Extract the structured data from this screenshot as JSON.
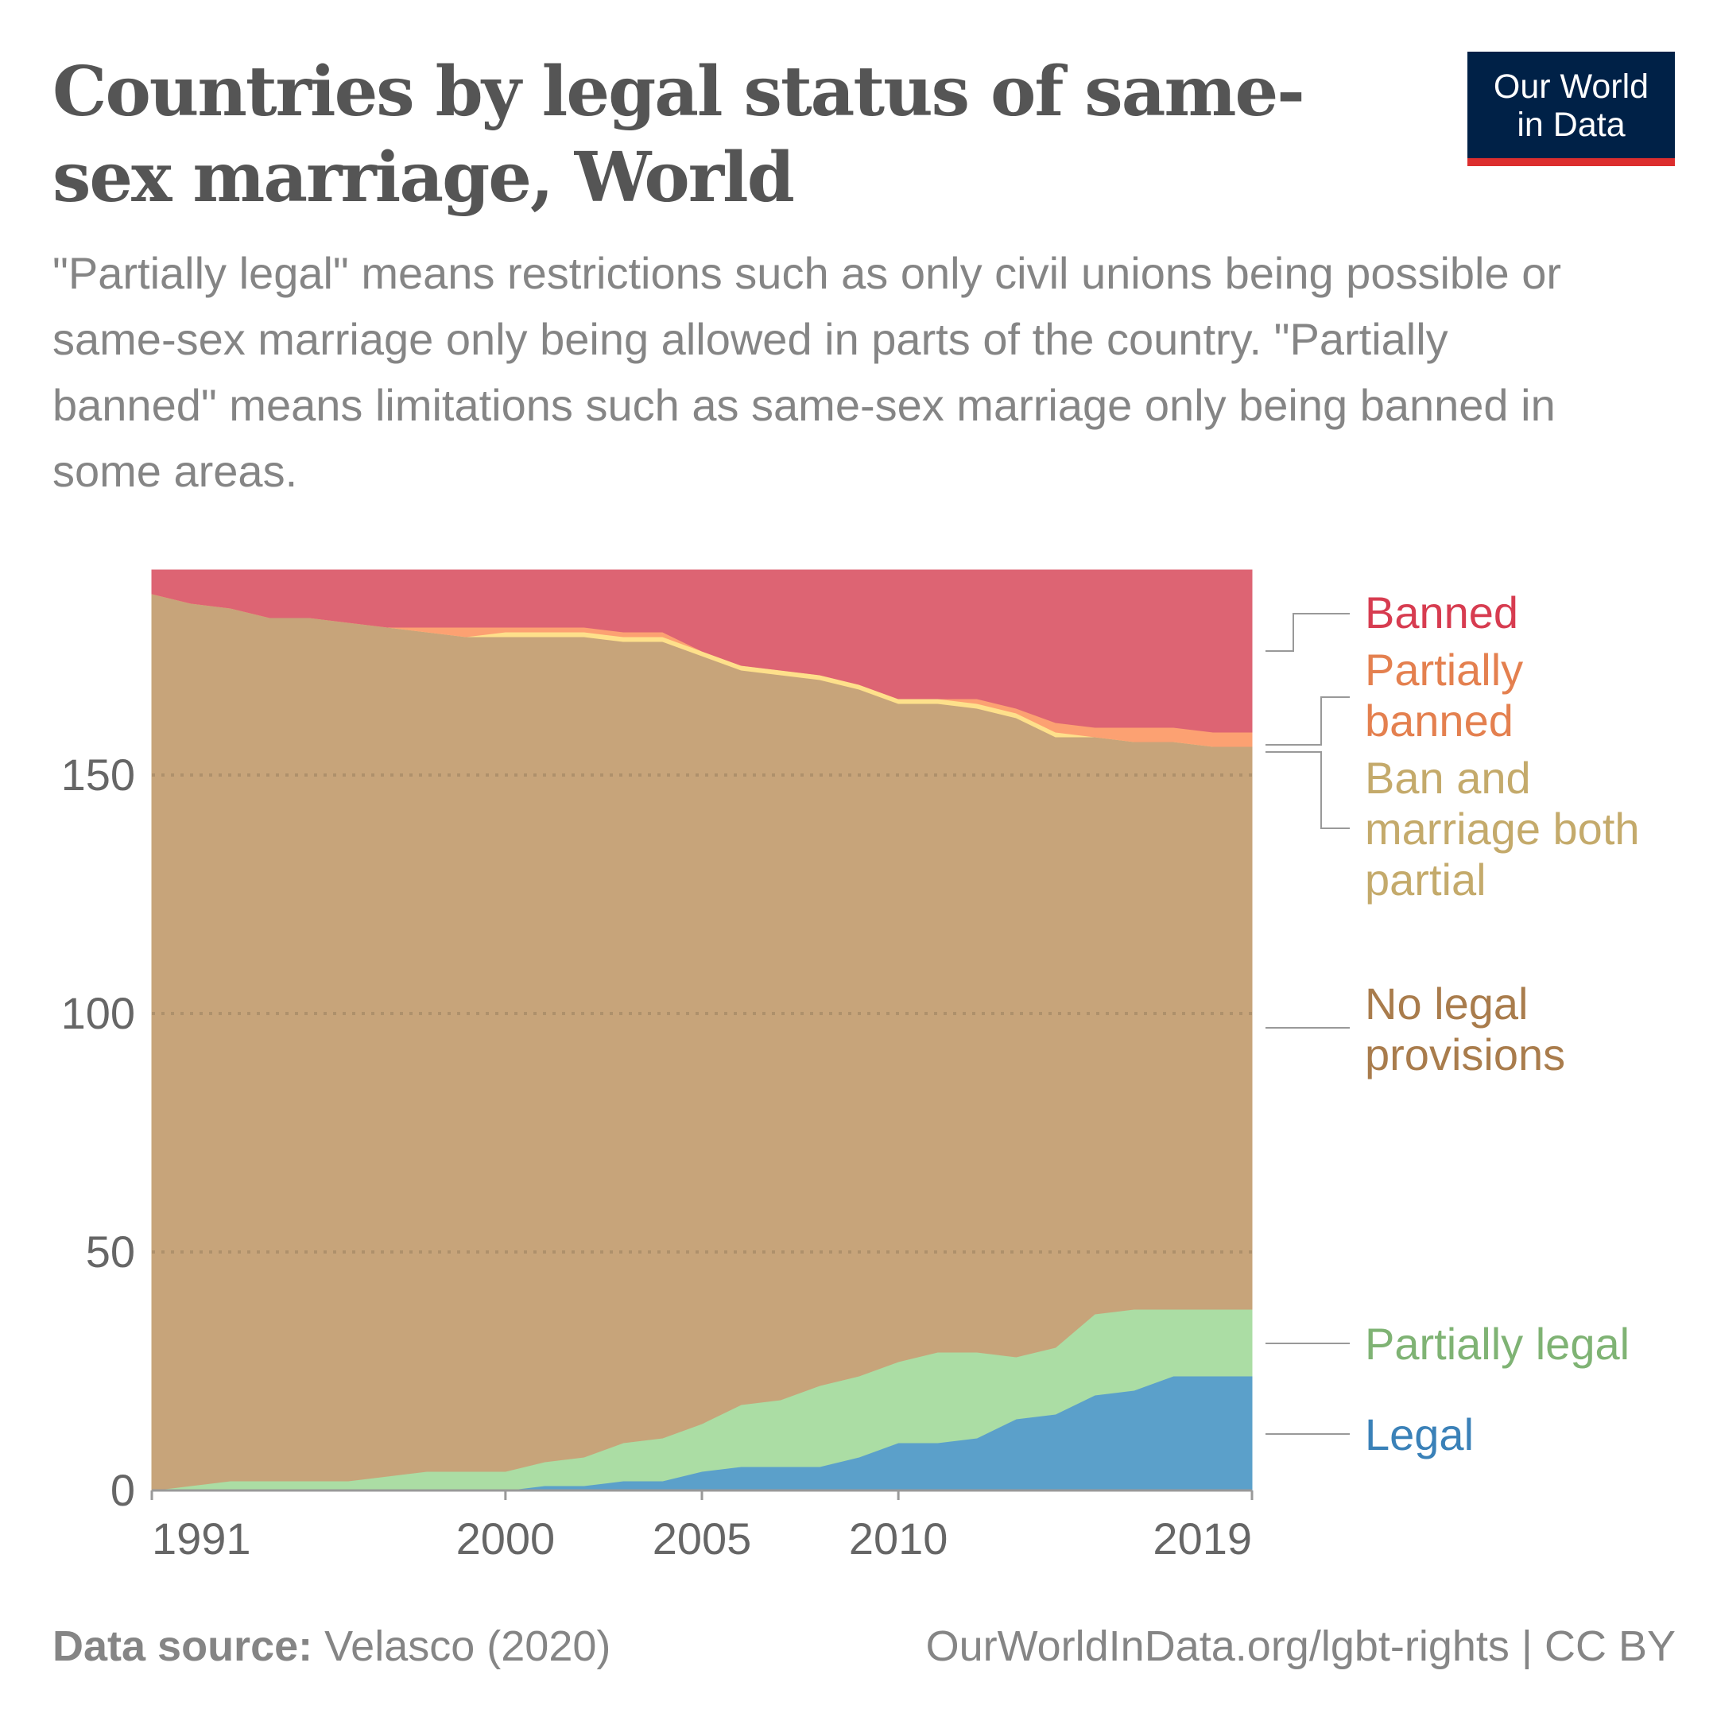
{
  "header": {
    "title": "Countries by legal status of same-sex marriage, World",
    "subtitle": "\"Partially legal\" means restrictions such as only civil unions being possible or same-sex marriage only being allowed in parts of the country. \"Partially banned\" means limitations such as same-sex marriage only being banned in some areas.",
    "logo_line1": "Our World",
    "logo_line2": "in Data"
  },
  "footer": {
    "source_label": "Data source:",
    "source": "Velasco (2020)",
    "url_license": "OurWorldInData.org/lgbt-rights | CC BY"
  },
  "chart_data": {
    "type": "area",
    "stacked": true,
    "x": [
      1991,
      1992,
      1993,
      1994,
      1995,
      1996,
      1997,
      1998,
      1999,
      2000,
      2001,
      2002,
      2003,
      2004,
      2005,
      2006,
      2007,
      2008,
      2009,
      2010,
      2011,
      2012,
      2013,
      2014,
      2015,
      2016,
      2017,
      2018,
      2019
    ],
    "x_ticks": [
      "1991",
      "2000",
      "2005",
      "2010",
      "2019"
    ],
    "y_ticks": [
      "0",
      "50",
      "100",
      "150"
    ],
    "ylim": [
      0,
      193
    ],
    "grid": "horizontal dotted",
    "legend_placement": "right (inline labels)",
    "series": [
      {
        "name": "Legal",
        "color": "#5ba0ca",
        "label_color": "#3a81b8",
        "values": [
          0,
          0,
          0,
          0,
          0,
          0,
          0,
          0,
          0,
          0,
          1,
          1,
          2,
          2,
          4,
          5,
          5,
          5,
          7,
          10,
          10,
          11,
          15,
          16,
          20,
          21,
          24,
          24,
          24
        ]
      },
      {
        "name": "Partially legal",
        "color": "#abdda4",
        "label_color": "#7fb374",
        "values": [
          0,
          1,
          2,
          2,
          2,
          2,
          3,
          4,
          4,
          4,
          5,
          6,
          8,
          9,
          10,
          13,
          14,
          17,
          17,
          17,
          19,
          18,
          13,
          14,
          17,
          17,
          14,
          14,
          14
        ]
      },
      {
        "name": "No legal provisions",
        "color": "#c7a47a",
        "label_color": "#a97c4c",
        "values": [
          188,
          185,
          183,
          181,
          181,
          180,
          178,
          176,
          175,
          175,
          173,
          172,
          168,
          167,
          161,
          154,
          152,
          148,
          144,
          138,
          136,
          135,
          134,
          128,
          121,
          119,
          119,
          118,
          118
        ]
      },
      {
        "name": "Ban and marriage both partial",
        "color": "#fee08b",
        "label_color": "#c4aa6b",
        "values": [
          0,
          0,
          0,
          0,
          0,
          0,
          0,
          0,
          0,
          1,
          1,
          1,
          1,
          1,
          1,
          1,
          1,
          1,
          1,
          1,
          1,
          1,
          1,
          1,
          0,
          0,
          0,
          0,
          0
        ]
      },
      {
        "name": "Partially banned",
        "color": "#fca172",
        "label_color": "#e4804f",
        "values": [
          0,
          0,
          0,
          0,
          0,
          0,
          0,
          1,
          2,
          1,
          1,
          1,
          1,
          1,
          0,
          0,
          0,
          0,
          0,
          0,
          0,
          1,
          1,
          2,
          2,
          3,
          3,
          3,
          3
        ]
      },
      {
        "name": "Banned",
        "color": "#dd6473",
        "label_color": "#d73c50",
        "values": [
          5,
          7,
          8,
          10,
          10,
          11,
          12,
          12,
          12,
          12,
          12,
          12,
          13,
          13,
          17,
          20,
          21,
          22,
          24,
          27,
          27,
          27,
          29,
          32,
          33,
          33,
          33,
          34,
          34
        ]
      }
    ]
  }
}
